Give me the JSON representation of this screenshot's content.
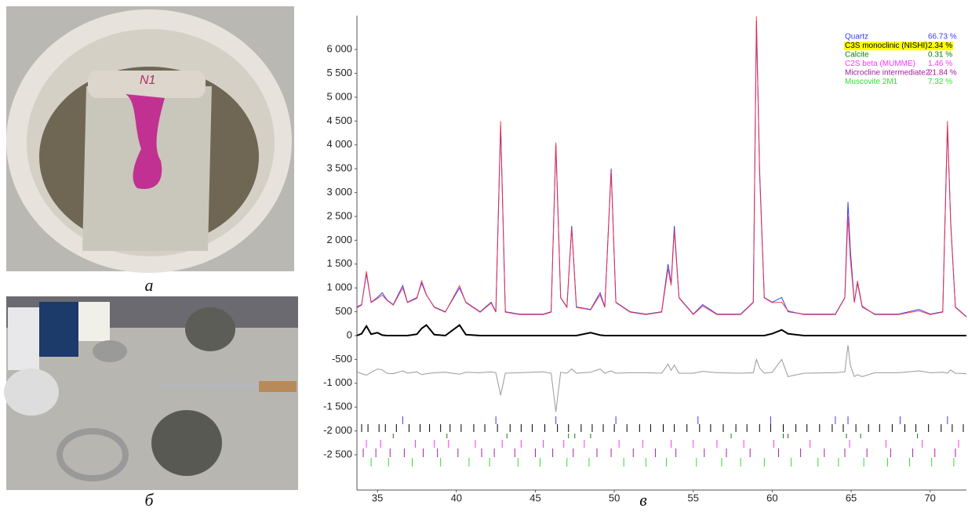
{
  "panels": [
    {
      "label": "а"
    },
    {
      "label": "б"
    },
    {
      "label": "в"
    }
  ],
  "chart_data": {
    "type": "line",
    "x": [
      33.7,
      34.0,
      34.3,
      34.6,
      35.0,
      35.3,
      35.6,
      36.0,
      36.6,
      36.9,
      37.5,
      37.8,
      38.1,
      38.6,
      39.3,
      40.2,
      40.6,
      41.5,
      42.2,
      42.5,
      42.8,
      43.1,
      44.0,
      45.5,
      46.0,
      46.3,
      46.6,
      47.0,
      47.3,
      47.6,
      48.5,
      49.1,
      49.4,
      49.8,
      50.1,
      51.0,
      52.0,
      53.0,
      53.4,
      53.6,
      53.8,
      54.1,
      55.0,
      55.6,
      56.5,
      58.0,
      58.8,
      59.0,
      59.2,
      59.5,
      60.0,
      60.6,
      61.0,
      62.0,
      64.0,
      64.6,
      64.8,
      64.95,
      65.2,
      65.4,
      65.7,
      66.5,
      68.0,
      69.3,
      70.0,
      70.8,
      71.1,
      71.3,
      71.6,
      72.3
    ],
    "xlim": [
      33.7,
      72.3
    ],
    "xticks": [
      35,
      40,
      45,
      50,
      55,
      60,
      65,
      70
    ],
    "ylim": [
      -3240,
      6710
    ],
    "yticks": [
      {
        "value": -2500,
        "label": "-2 500"
      },
      {
        "value": -2000,
        "label": "-2 000"
      },
      {
        "value": -1500,
        "label": "-1 500"
      },
      {
        "value": -1000,
        "label": "-1 000"
      },
      -500,
      0,
      500,
      {
        "value": 1000,
        "label": "1 000"
      },
      {
        "value": 1500,
        "label": "1 500"
      },
      {
        "value": 2000,
        "label": "2 000"
      },
      {
        "value": 2500,
        "label": "2 500"
      },
      {
        "value": 3000,
        "label": "3 000"
      },
      {
        "value": 3500,
        "label": "3 500"
      },
      {
        "value": 4000,
        "label": "4 000"
      },
      {
        "value": 4500,
        "label": "4 500"
      },
      {
        "value": 5000,
        "label": "5 000"
      },
      {
        "value": 5500,
        "label": "5 500"
      },
      {
        "value": 6000,
        "label": "6 000"
      }
    ],
    "series": [
      {
        "color": "#3b3bff",
        "values": [
          600,
          650,
          1300,
          700,
          800,
          900,
          750,
          650,
          1050,
          700,
          800,
          1100,
          850,
          600,
          500,
          1000,
          700,
          500,
          700,
          500,
          4400,
          500,
          450,
          450,
          500,
          4000,
          800,
          600,
          2300,
          600,
          550,
          900,
          600,
          3500,
          700,
          500,
          450,
          500,
          1500,
          1100,
          2300,
          800,
          450,
          650,
          450,
          450,
          700,
          6600,
          3500,
          800,
          700,
          800,
          500,
          450,
          450,
          800,
          2800,
          1800,
          700,
          1100,
          600,
          450,
          450,
          550,
          450,
          500,
          4400,
          2400,
          600,
          400
        ]
      },
      {
        "color": "#ff2a2a",
        "values": [
          580,
          640,
          1350,
          690,
          780,
          850,
          740,
          640,
          1000,
          690,
          780,
          1150,
          860,
          590,
          490,
          1050,
          690,
          490,
          680,
          490,
          4500,
          490,
          440,
          440,
          490,
          4050,
          790,
          590,
          2250,
          590,
          540,
          850,
          590,
          3450,
          690,
          490,
          440,
          490,
          1400,
          1050,
          2200,
          790,
          440,
          620,
          440,
          440,
          690,
          6700,
          3400,
          790,
          690,
          700,
          520,
          440,
          440,
          790,
          2500,
          1600,
          690,
          1150,
          620,
          440,
          440,
          520,
          440,
          490,
          4500,
          2350,
          590,
          390
        ]
      },
      {
        "color": "#000000",
        "values": [
          0,
          40,
          200,
          30,
          60,
          10,
          0,
          0,
          0,
          0,
          30,
          150,
          220,
          20,
          0,
          220,
          20,
          0,
          0,
          0,
          0,
          0,
          0,
          0,
          0,
          0,
          0,
          0,
          0,
          0,
          60,
          10,
          0,
          0,
          0,
          0,
          0,
          0,
          0,
          0,
          0,
          0,
          0,
          0,
          0,
          0,
          0,
          0,
          0,
          0,
          40,
          120,
          40,
          0,
          0,
          0,
          0,
          0,
          0,
          0,
          0,
          0,
          0,
          0,
          0,
          0,
          0,
          0,
          0,
          0
        ]
      },
      {
        "color": "#999999",
        "values": [
          -760,
          -800,
          -830,
          -770,
          -700,
          -720,
          -790,
          -800,
          -740,
          -790,
          -760,
          -820,
          -800,
          -780,
          -770,
          -810,
          -770,
          -780,
          -760,
          -780,
          -1250,
          -790,
          -780,
          -760,
          -790,
          -1600,
          -770,
          -790,
          -700,
          -790,
          -770,
          -700,
          -790,
          -740,
          -790,
          -780,
          -780,
          -790,
          -600,
          -730,
          -620,
          -790,
          -790,
          -750,
          -780,
          -790,
          -780,
          -500,
          -680,
          -790,
          -770,
          -500,
          -860,
          -790,
          -780,
          -760,
          -200,
          -620,
          -860,
          -820,
          -860,
          -780,
          -780,
          -740,
          -780,
          -770,
          -790,
          -720,
          -790,
          -800
        ]
      }
    ],
    "phases": [
      {
        "name": "Quartz",
        "label": "66.73 %",
        "color": "#3b3bff",
        "reflections": [
          36.6,
          42.5,
          46.3,
          50.1,
          55.3,
          59.9,
          64.0,
          64.8,
          68.1,
          71.1
        ]
      },
      {
        "name": "C3S monoclinic (NISHI)",
        "label": "2.34 %",
        "color": "#000000",
        "highlight": "#ffff00",
        "reflections": [
          34.0,
          34.4,
          35.1,
          35.5,
          36.2,
          37.0,
          37.7,
          38.3,
          39.0,
          39.6,
          40.3,
          41.1,
          41.8,
          42.6,
          43.4,
          44.1,
          44.8,
          45.6,
          46.4,
          47.1,
          47.9,
          48.6,
          49.3,
          50.0,
          50.8,
          51.6,
          52.3,
          53.1,
          53.8,
          54.6,
          55.4,
          56.1,
          56.9,
          57.7,
          58.4,
          59.2,
          59.9,
          60.7,
          61.5,
          62.2,
          63.0,
          63.8,
          64.5,
          65.3,
          66.1,
          66.8,
          67.6,
          68.4,
          69.1,
          69.9,
          70.7,
          71.4,
          72.1
        ]
      },
      {
        "name": "Calcite",
        "label": "0.31 %",
        "color": "#127a12",
        "reflections": [
          36.0,
          39.4,
          43.2,
          47.1,
          47.5,
          48.5,
          57.4,
          60.7,
          61.0,
          64.7,
          65.6,
          69.2
        ]
      },
      {
        "name": "C2S beta (MUMME)",
        "label": "1.46 %",
        "color": "#ff33ff",
        "reflections": [
          34.3,
          35.2,
          37.4,
          38.6,
          39.5,
          41.2,
          42.9,
          44.1,
          45.5,
          46.8,
          48.1,
          50.3,
          51.8,
          53.6,
          55.0,
          56.5,
          58.2,
          60.1,
          62.4,
          64.9,
          67.2,
          69.5,
          71.8
        ]
      },
      {
        "name": "Microcline intermediate2",
        "label": "21.84 %",
        "color": "#a020a0",
        "reflections": [
          34.1,
          34.9,
          35.8,
          36.7,
          37.9,
          38.8,
          40.1,
          41.6,
          42.4,
          43.7,
          45.0,
          46.1,
          47.4,
          48.9,
          49.8,
          51.2,
          52.6,
          53.9,
          55.7,
          57.1,
          58.6,
          60.4,
          61.8,
          63.3,
          64.6,
          66.0,
          67.5,
          68.9,
          70.3,
          71.6
        ]
      },
      {
        "name": "Muscovite 2M1",
        "label": "7.32 %",
        "color": "#33dd33",
        "reflections": [
          34.6,
          35.7,
          37.2,
          39.0,
          40.8,
          42.1,
          43.9,
          45.3,
          47.0,
          48.4,
          50.6,
          52.0,
          53.3,
          55.2,
          56.8,
          58.0,
          59.5,
          61.2,
          62.9,
          64.2,
          65.8,
          67.3,
          68.7,
          70.1,
          71.5
        ]
      }
    ]
  }
}
